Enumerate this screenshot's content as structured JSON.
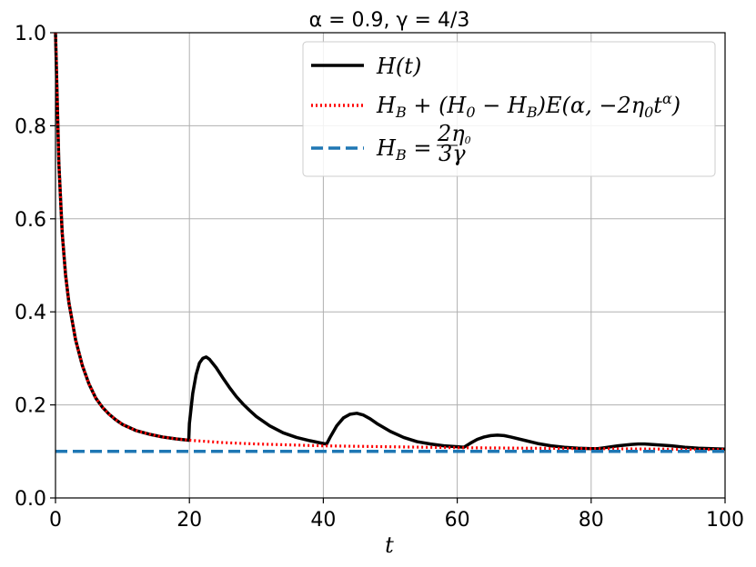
{
  "chart_data": {
    "type": "line",
    "title": "α = 0.9, γ = 4/3",
    "xlabel": "t",
    "ylabel": "",
    "xlim": [
      0,
      100
    ],
    "ylim": [
      0.0,
      1.0
    ],
    "xticks": [
      0,
      20,
      40,
      60,
      80,
      100
    ],
    "yticks": [
      0.0,
      0.2,
      0.4,
      0.6,
      0.8,
      1.0
    ],
    "xtick_labels": [
      "0",
      "20",
      "40",
      "60",
      "80",
      "100"
    ],
    "ytick_labels": [
      "0.0",
      "0.2",
      "0.4",
      "0.6",
      "0.8",
      "1.0"
    ],
    "grid": true,
    "legend_position": "top-right",
    "series": [
      {
        "name": "H(t)",
        "color": "#000000",
        "style": "solid",
        "x": [
          0,
          0.5,
          1,
          1.5,
          2,
          3,
          4,
          5,
          6,
          7,
          8,
          9,
          10,
          12,
          14,
          16,
          18,
          19.9,
          20.0,
          20.5,
          21,
          21.5,
          22,
          22.5,
          23,
          24,
          25,
          26,
          27,
          28,
          29,
          30,
          32,
          34,
          36,
          38,
          40,
          40.5,
          41,
          42,
          43,
          44,
          45,
          46,
          47,
          48,
          50,
          52,
          54,
          56,
          58,
          60,
          61,
          62,
          63,
          64,
          65,
          66,
          67,
          68,
          70,
          72,
          74,
          76,
          78,
          80,
          81,
          82,
          84,
          86,
          87,
          88,
          89,
          90,
          92,
          94,
          96,
          98,
          100
        ],
        "y": [
          1.0,
          0.72,
          0.57,
          0.48,
          0.42,
          0.34,
          0.285,
          0.245,
          0.215,
          0.195,
          0.18,
          0.168,
          0.158,
          0.145,
          0.137,
          0.131,
          0.127,
          0.124,
          0.16,
          0.225,
          0.265,
          0.29,
          0.3,
          0.303,
          0.298,
          0.28,
          0.258,
          0.237,
          0.218,
          0.202,
          0.188,
          0.175,
          0.155,
          0.14,
          0.13,
          0.123,
          0.117,
          0.116,
          0.13,
          0.155,
          0.172,
          0.18,
          0.182,
          0.178,
          0.17,
          0.16,
          0.143,
          0.13,
          0.121,
          0.116,
          0.112,
          0.11,
          0.109,
          0.118,
          0.126,
          0.131,
          0.134,
          0.135,
          0.134,
          0.131,
          0.124,
          0.117,
          0.112,
          0.109,
          0.107,
          0.106,
          0.106,
          0.108,
          0.112,
          0.115,
          0.116,
          0.116,
          0.115,
          0.114,
          0.112,
          0.109,
          0.107,
          0.106,
          0.105
        ]
      },
      {
        "name": "H_B + (H_0 − H_B)E(α, −2η_0 t^α)",
        "color": "#ff0000",
        "style": "dotted",
        "x": [
          0,
          0.5,
          1,
          1.5,
          2,
          3,
          4,
          5,
          6,
          7,
          8,
          9,
          10,
          12,
          14,
          16,
          18,
          20,
          25,
          30,
          35,
          40,
          50,
          60,
          70,
          80,
          90,
          100
        ],
        "y": [
          1.0,
          0.72,
          0.57,
          0.48,
          0.42,
          0.34,
          0.285,
          0.245,
          0.215,
          0.195,
          0.18,
          0.168,
          0.158,
          0.145,
          0.137,
          0.131,
          0.127,
          0.124,
          0.119,
          0.116,
          0.114,
          0.112,
          0.11,
          0.108,
          0.107,
          0.106,
          0.105,
          0.104
        ]
      },
      {
        "name": "H_B = 2η_0/3γ",
        "color": "#1f77b4",
        "style": "dashed",
        "x": [
          0,
          100
        ],
        "y": [
          0.1,
          0.1
        ]
      }
    ]
  }
}
